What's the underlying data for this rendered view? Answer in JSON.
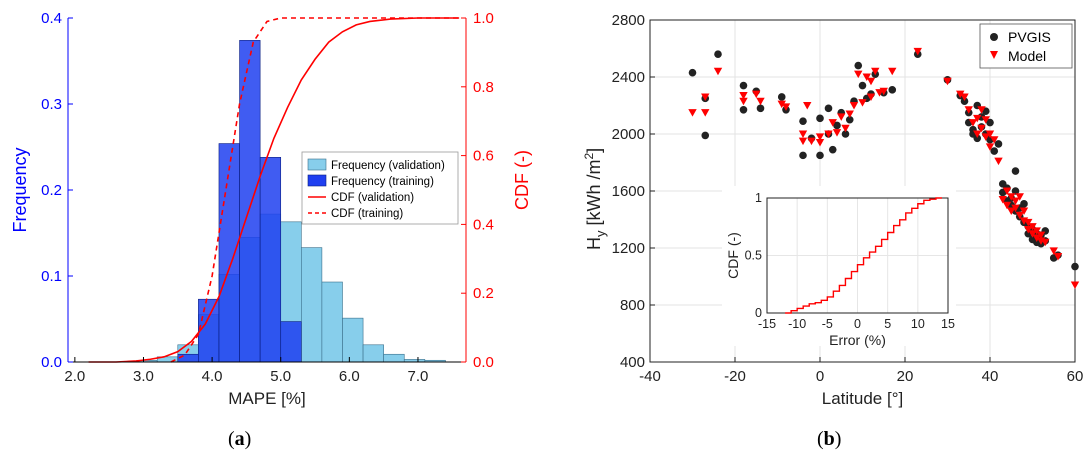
{
  "captions": {
    "a": "a",
    "b": "b"
  },
  "colors": {
    "validation_hist": "#87ceeb",
    "training_hist": "#1f3ff0",
    "cdf": "#ff0000",
    "left_axis": "#0000ff",
    "scatter_pvgis": "#222222",
    "scatter_model": "#ff0000"
  },
  "chart_data": [
    {
      "type": "bar",
      "id": "a",
      "xlabel": "MAPE [%]",
      "ylabel": "Frequency",
      "y2label": "CDF (-)",
      "xlim": [
        1.9,
        7.7
      ],
      "ylim": [
        0,
        0.4
      ],
      "y2lim": [
        0,
        1.0
      ],
      "xticks": [
        "2.0",
        "3.0",
        "4.0",
        "5.0",
        "6.0",
        "7.0"
      ],
      "yticks": [
        "0.0",
        "0.1",
        "0.2",
        "0.3",
        "0.4"
      ],
      "y2ticks": [
        "0.0",
        "0.2",
        "0.4",
        "0.6",
        "0.8",
        "1.0"
      ],
      "bin_width": 0.3,
      "legend_position": "center-right",
      "legend": [
        "Frequency (validation)",
        "Frequency (training)",
        "CDF (validation)",
        "CDF (training)"
      ],
      "series": [
        {
          "name": "Frequency (validation)",
          "bin_starts": [
            2.9,
            3.2,
            3.5,
            3.8,
            4.1,
            4.4,
            4.7,
            5.0,
            5.3,
            5.6,
            5.9,
            6.2,
            6.5,
            6.8,
            7.1
          ],
          "values": [
            0.002,
            0.006,
            0.02,
            0.055,
            0.102,
            0.145,
            0.172,
            0.163,
            0.133,
            0.093,
            0.051,
            0.02,
            0.009,
            0.003,
            0.002
          ]
        },
        {
          "name": "Frequency (training)",
          "bin_starts": [
            3.5,
            3.8,
            4.1,
            4.4,
            4.7,
            5.0
          ],
          "values": [
            0.009,
            0.073,
            0.254,
            0.374,
            0.238,
            0.047
          ]
        },
        {
          "name": "CDF (validation)",
          "x": [
            2.2,
            2.6,
            2.9,
            3.1,
            3.3,
            3.5,
            3.7,
            3.9,
            4.1,
            4.3,
            4.5,
            4.7,
            4.9,
            5.1,
            5.3,
            5.5,
            5.7,
            5.9,
            6.1,
            6.3,
            6.6,
            7.0,
            7.4,
            7.6
          ],
          "y": [
            0.0,
            0.0,
            0.003,
            0.008,
            0.015,
            0.03,
            0.06,
            0.11,
            0.19,
            0.3,
            0.42,
            0.54,
            0.65,
            0.74,
            0.82,
            0.88,
            0.93,
            0.96,
            0.98,
            0.99,
            0.997,
            1.0,
            1.0,
            1.0
          ]
        },
        {
          "name": "CDF (training)",
          "x": [
            3.4,
            3.6,
            3.8,
            4.0,
            4.2,
            4.4,
            4.6,
            4.8,
            5.0,
            5.2,
            6.0,
            7.6
          ],
          "y": [
            0.0,
            0.02,
            0.08,
            0.25,
            0.5,
            0.75,
            0.93,
            0.99,
            1.0,
            1.0,
            1.0,
            1.0
          ]
        }
      ]
    },
    {
      "type": "scatter",
      "id": "b",
      "xlabel": "Latitude [°]",
      "ylabel_main": "H",
      "ylabel_sub": "y",
      "ylabel_unit": " [kWh /m",
      "ylabel_sup": "2",
      "ylabel_close": "]",
      "xlim": [
        -40,
        60
      ],
      "ylim": [
        400,
        2800
      ],
      "xticks": [
        "-40",
        "-20",
        "0",
        "20",
        "40",
        "60"
      ],
      "yticks": [
        "400",
        "800",
        "1200",
        "1600",
        "2000",
        "2400",
        "2800"
      ],
      "grid": true,
      "legend_position": "top-right",
      "legend": [
        "PVGIS",
        "Model"
      ],
      "series": [
        {
          "name": "PVGIS",
          "points": [
            [
              -30,
              2430
            ],
            [
              -27,
              2250
            ],
            [
              -27,
              1990
            ],
            [
              -24,
              2560
            ],
            [
              -18,
              2340
            ],
            [
              -18,
              2170
            ],
            [
              -15,
              2300
            ],
            [
              -14,
              2180
            ],
            [
              -9,
              2260
            ],
            [
              -8,
              2170
            ],
            [
              -4,
              2090
            ],
            [
              -4,
              1850
            ],
            [
              -2,
              1970
            ],
            [
              0,
              2110
            ],
            [
              0,
              1850
            ],
            [
              2,
              2000
            ],
            [
              2,
              2180
            ],
            [
              3,
              1890
            ],
            [
              4,
              2060
            ],
            [
              5,
              2150
            ],
            [
              6,
              2000
            ],
            [
              7,
              2100
            ],
            [
              8,
              2230
            ],
            [
              9,
              2480
            ],
            [
              10,
              2340
            ],
            [
              11,
              2250
            ],
            [
              12,
              2280
            ],
            [
              13,
              2420
            ],
            [
              15,
              2290
            ],
            [
              17,
              2310
            ],
            [
              23,
              2560
            ],
            [
              30,
              2380
            ],
            [
              33,
              2270
            ],
            [
              34,
              2230
            ],
            [
              35,
              2150
            ],
            [
              35,
              2080
            ],
            [
              36,
              2030
            ],
            [
              36,
              2000
            ],
            [
              37,
              1970
            ],
            [
              37,
              2200
            ],
            [
              38,
              2120
            ],
            [
              38,
              2050
            ],
            [
              39,
              2000
            ],
            [
              39,
              2160
            ],
            [
              40,
              1960
            ],
            [
              40,
              2080
            ],
            [
              41,
              1880
            ],
            [
              42,
              1930
            ],
            [
              43,
              1650
            ],
            [
              43,
              1590
            ],
            [
              44,
              1620
            ],
            [
              44,
              1530
            ],
            [
              45,
              1550
            ],
            [
              45,
              1500
            ],
            [
              46,
              1600
            ],
            [
              46,
              1460
            ],
            [
              46,
              1740
            ],
            [
              47,
              1420
            ],
            [
              47,
              1480
            ],
            [
              48,
              1380
            ],
            [
              48,
              1510
            ],
            [
              49,
              1350
            ],
            [
              49,
              1300
            ],
            [
              50,
              1330
            ],
            [
              50,
              1260
            ],
            [
              51,
              1300
            ],
            [
              51,
              1240
            ],
            [
              52,
              1290
            ],
            [
              52,
              1230
            ],
            [
              53,
              1250
            ],
            [
              53,
              1320
            ],
            [
              55,
              1130
            ],
            [
              56,
              1150
            ],
            [
              60,
              1070
            ]
          ]
        },
        {
          "name": "Model",
          "points": [
            [
              -30,
              2150
            ],
            [
              -27,
              2260
            ],
            [
              -27,
              2150
            ],
            [
              -24,
              2440
            ],
            [
              -18,
              2270
            ],
            [
              -18,
              2230
            ],
            [
              -15,
              2280
            ],
            [
              -14,
              2230
            ],
            [
              -9,
              2210
            ],
            [
              -8,
              2190
            ],
            [
              -4,
              2000
            ],
            [
              -4,
              1950
            ],
            [
              -3,
              2200
            ],
            [
              -2,
              1950
            ],
            [
              0,
              1940
            ],
            [
              0,
              1980
            ],
            [
              2,
              2000
            ],
            [
              3,
              2080
            ],
            [
              4,
              2010
            ],
            [
              5,
              2120
            ],
            [
              6,
              2040
            ],
            [
              7,
              2140
            ],
            [
              8,
              2200
            ],
            [
              9,
              2420
            ],
            [
              10,
              2220
            ],
            [
              11,
              2400
            ],
            [
              12,
              2260
            ],
            [
              12,
              2370
            ],
            [
              13,
              2440
            ],
            [
              14,
              2290
            ],
            [
              15,
              2300
            ],
            [
              17,
              2440
            ],
            [
              23,
              2580
            ],
            [
              30,
              2370
            ],
            [
              33,
              2280
            ],
            [
              34,
              2260
            ],
            [
              35,
              2170
            ],
            [
              36,
              2080
            ],
            [
              37,
              2110
            ],
            [
              37,
              2000
            ],
            [
              38,
              2170
            ],
            [
              38,
              2040
            ],
            [
              39,
              1980
            ],
            [
              39,
              2100
            ],
            [
              40,
              1910
            ],
            [
              40,
              2000
            ],
            [
              41,
              1960
            ],
            [
              42,
              1810
            ],
            [
              43,
              1540
            ],
            [
              44,
              1600
            ],
            [
              44,
              1500
            ],
            [
              45,
              1560
            ],
            [
              45,
              1460
            ],
            [
              46,
              1480
            ],
            [
              46,
              1530
            ],
            [
              47,
              1430
            ],
            [
              47,
              1560
            ],
            [
              48,
              1390
            ],
            [
              48,
              1460
            ],
            [
              49,
              1330
            ],
            [
              49,
              1380
            ],
            [
              50,
              1300
            ],
            [
              50,
              1350
            ],
            [
              51,
              1270
            ],
            [
              51,
              1320
            ],
            [
              52,
              1250
            ],
            [
              52,
              1290
            ],
            [
              53,
              1240
            ],
            [
              55,
              1180
            ],
            [
              56,
              1140
            ],
            [
              60,
              940
            ]
          ]
        }
      ],
      "inset": {
        "type": "line",
        "xlabel": "Error (%)",
        "ylabel": "CDF (-)",
        "xlim": [
          -15,
          15
        ],
        "ylim": [
          0,
          1
        ],
        "xticks": [
          "-15",
          "-10",
          "-5",
          "0",
          "5",
          "10",
          "15"
        ],
        "yticks": [
          "0",
          "0.5",
          "1"
        ],
        "x": [
          -12,
          -11,
          -10,
          -9,
          -8,
          -7,
          -6,
          -5,
          -4,
          -3,
          -2,
          -1,
          0,
          1,
          2,
          3,
          4,
          5,
          6,
          7,
          8,
          9,
          10,
          11,
          12,
          13,
          14
        ],
        "y": [
          0.0,
          0.02,
          0.04,
          0.06,
          0.08,
          0.09,
          0.11,
          0.14,
          0.19,
          0.24,
          0.3,
          0.36,
          0.42,
          0.48,
          0.53,
          0.58,
          0.64,
          0.7,
          0.76,
          0.81,
          0.87,
          0.91,
          0.95,
          0.98,
          0.99,
          1.0,
          1.0
        ]
      }
    }
  ]
}
